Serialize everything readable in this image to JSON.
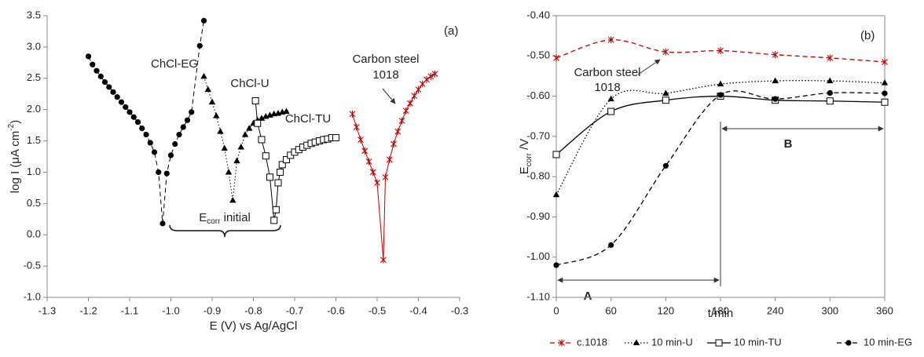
{
  "chart_data": [
    {
      "type": "line",
      "panel_label": "(a)",
      "x_label": "E (V) vs Ag/AgCl",
      "y_label": [
        "log I (μA cm",
        "-2",
        ")"
      ],
      "ecorr_label": [
        "E",
        "corr",
        " initial"
      ],
      "xlim": [
        -1.3,
        -0.3
      ],
      "ylim": [
        -1.0,
        3.5
      ],
      "xticks": [
        -1.3,
        -1.2,
        -1.1,
        {
          "value": -1.0,
          "label": "-1.0"
        },
        -0.9,
        -0.8,
        -0.7,
        -0.6,
        -0.5,
        -0.4,
        -0.3
      ],
      "yticks": [
        3.5,
        {
          "value": 3.0,
          "label": "3.0"
        },
        2.5,
        {
          "value": 2.0,
          "label": "2.0"
        },
        1.5,
        {
          "value": 1.0,
          "label": "1.0"
        },
        0.5,
        {
          "value": 0.0,
          "label": "0.0"
        },
        -0.5,
        {
          "value": -1.0,
          "label": "-1.0"
        }
      ],
      "frame": false,
      "series": [
        {
          "name": "ChCl-EG",
          "color": "#000000",
          "dash": "dashed",
          "marker": "circle",
          "x": [
            -1.2,
            -1.19,
            -1.18,
            -1.17,
            -1.16,
            -1.15,
            -1.14,
            -1.13,
            -1.12,
            -1.11,
            -1.1,
            -1.09,
            -1.08,
            -1.07,
            -1.06,
            -1.05,
            -1.04,
            -1.03,
            -1.02,
            -1.01,
            -1.0,
            -0.99,
            -0.98,
            -0.97,
            -0.96,
            -0.95,
            -0.93,
            -0.92
          ],
          "y": [
            2.85,
            2.72,
            2.62,
            2.53,
            2.44,
            2.36,
            2.28,
            2.2,
            2.12,
            2.04,
            1.96,
            1.88,
            1.8,
            1.7,
            1.6,
            1.47,
            1.32,
            1.0,
            0.18,
            0.98,
            1.27,
            1.45,
            1.6,
            1.72,
            1.83,
            1.96,
            3.02,
            3.42
          ]
        },
        {
          "name": "ChCl-U",
          "color": "#000000",
          "dash": "dotted",
          "marker": "triangle",
          "x": [
            -0.92,
            -0.91,
            -0.9,
            -0.89,
            -0.88,
            -0.87,
            -0.86,
            -0.85,
            -0.84,
            -0.83,
            -0.82,
            -0.81,
            -0.8,
            -0.79,
            -0.78,
            -0.77,
            -0.76,
            -0.75,
            -0.74,
            -0.73,
            -0.72
          ],
          "y": [
            2.53,
            2.32,
            2.12,
            1.9,
            1.65,
            1.38,
            1.0,
            0.55,
            1.18,
            1.4,
            1.6,
            1.7,
            1.78,
            1.83,
            1.86,
            1.89,
            1.91,
            1.93,
            1.94,
            1.96,
            1.97
          ]
        },
        {
          "name": "ChCl-TU",
          "color": "#000000",
          "dash": "solid",
          "marker": "square",
          "x": [
            -0.795,
            -0.79,
            -0.78,
            -0.77,
            -0.76,
            -0.75,
            -0.745,
            -0.74,
            -0.735,
            -0.73,
            -0.72,
            -0.71,
            -0.7,
            -0.69,
            -0.68,
            -0.67,
            -0.66,
            -0.65,
            -0.64,
            -0.63,
            -0.62,
            -0.61,
            -0.6
          ],
          "y": [
            2.14,
            1.78,
            1.52,
            1.26,
            0.92,
            0.23,
            0.4,
            0.83,
            1.0,
            1.12,
            1.2,
            1.27,
            1.32,
            1.36,
            1.4,
            1.43,
            1.46,
            1.48,
            1.5,
            1.52,
            1.53,
            1.55,
            1.55
          ]
        },
        {
          "label_lines": [
            "Carbon steel",
            "1018"
          ],
          "color": "#c00000",
          "dash": "solid",
          "marker": "asterisk",
          "x": [
            -0.56,
            -0.55,
            -0.54,
            -0.53,
            -0.52,
            -0.51,
            -0.5,
            -0.485,
            -0.48,
            -0.47,
            -0.46,
            -0.45,
            -0.44,
            -0.43,
            -0.42,
            -0.41,
            -0.4,
            -0.39,
            -0.38,
            -0.37,
            -0.36
          ],
          "y": [
            1.93,
            1.72,
            1.52,
            1.34,
            1.17,
            1.0,
            0.83,
            -0.4,
            0.92,
            1.2,
            1.45,
            1.65,
            1.82,
            1.98,
            2.1,
            2.22,
            2.32,
            2.41,
            2.48,
            2.53,
            2.57
          ]
        }
      ]
    },
    {
      "type": "line",
      "panel_label": "(b)",
      "x_label": "t/min",
      "y_label": [
        "E",
        "corr",
        " /V"
      ],
      "callout": [
        "Carbon steel",
        "1018"
      ],
      "ranges": [
        "A",
        "B"
      ],
      "xlim": [
        0,
        360
      ],
      "ylim": [
        -1.1,
        -0.4
      ],
      "xticks": [
        0,
        60,
        120,
        180,
        240,
        300,
        360
      ],
      "yticks": [
        {
          "value": -0.4,
          "label": "-0.40"
        },
        {
          "value": -0.5,
          "label": "-0.50"
        },
        {
          "value": -0.6,
          "label": "-0.60"
        },
        {
          "value": -0.7,
          "label": "-0.70"
        },
        {
          "value": -0.8,
          "label": "-0.80"
        },
        {
          "value": -0.9,
          "label": "-0.90"
        },
        {
          "value": -1.0,
          "label": "-1.00"
        },
        {
          "value": -1.1,
          "label": "-1.10"
        }
      ],
      "frame": true,
      "smooth": true,
      "legend": "bottom",
      "x": [
        0,
        60,
        120,
        180,
        240,
        300,
        360
      ],
      "series": [
        {
          "name": "c.1018",
          "color": "#c00000",
          "dash": "dashed",
          "marker": "asterisk",
          "values": [
            -0.505,
            -0.46,
            -0.49,
            -0.487,
            -0.497,
            -0.505,
            -0.515
          ]
        },
        {
          "name": "10 min-U",
          "color": "#000000",
          "dash": "dotted",
          "marker": "triangle",
          "values": [
            -0.845,
            -0.607,
            -0.593,
            -0.57,
            -0.562,
            -0.562,
            -0.567
          ]
        },
        {
          "name": "10 min-TU",
          "color": "#000000",
          "dash": "solid",
          "marker": "square",
          "values": [
            -0.745,
            -0.638,
            -0.61,
            -0.6,
            -0.61,
            -0.612,
            -0.615
          ]
        },
        {
          "name": "10 min-EG",
          "color": "#000000",
          "dash": "dashed",
          "marker": "circle",
          "values": [
            -1.02,
            -0.97,
            -0.773,
            -0.597,
            -0.607,
            -0.592,
            -0.593
          ]
        }
      ]
    }
  ]
}
